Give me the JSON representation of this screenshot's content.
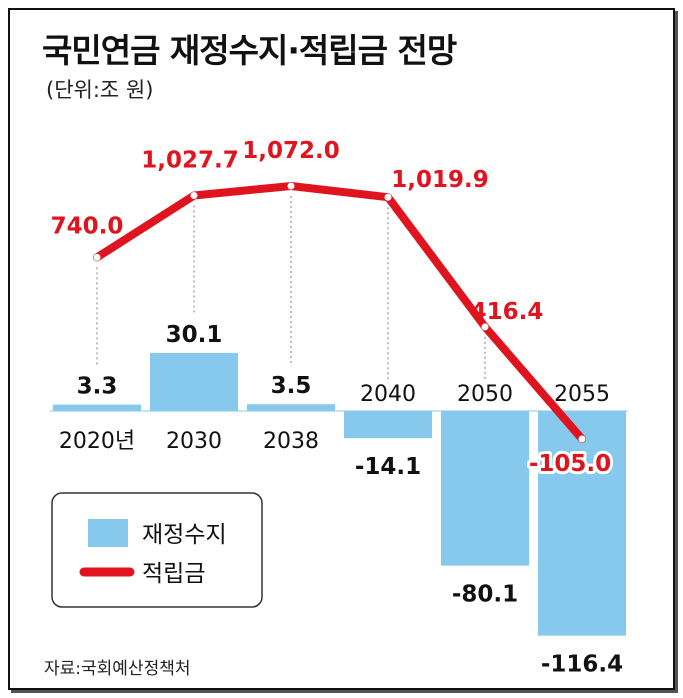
{
  "title": "국민연금 재정수지·적립금 전망",
  "unit": "(단위:조 원)",
  "source": "자료:국회예산정책처",
  "colors": {
    "bar": "#86c9ec",
    "line": "#e0141e",
    "text": "#111111"
  },
  "chart_data": {
    "type": "bar",
    "categories": [
      "2020년",
      "2030",
      "2038",
      "2040",
      "2050",
      "2055"
    ],
    "bar_labels": [
      "3.3",
      "30.1",
      "3.5",
      "-14.1",
      "-80.1",
      "-116.4"
    ],
    "line_labels": [
      "740.0",
      "1,027.7",
      "1,072.0",
      "1,019.9",
      "416.4",
      "-105.0"
    ],
    "series": [
      {
        "name": "재정수지",
        "type": "bar",
        "values": [
          3.3,
          30.1,
          3.5,
          -14.1,
          -80.1,
          -116.4
        ]
      },
      {
        "name": "적립금",
        "type": "line",
        "values": [
          740.0,
          1027.7,
          1072.0,
          1019.9,
          416.4,
          -105.0
        ]
      }
    ],
    "legend": {
      "position": "bottom-left",
      "items": [
        "재정수지",
        "적립금"
      ]
    },
    "grid": false
  }
}
